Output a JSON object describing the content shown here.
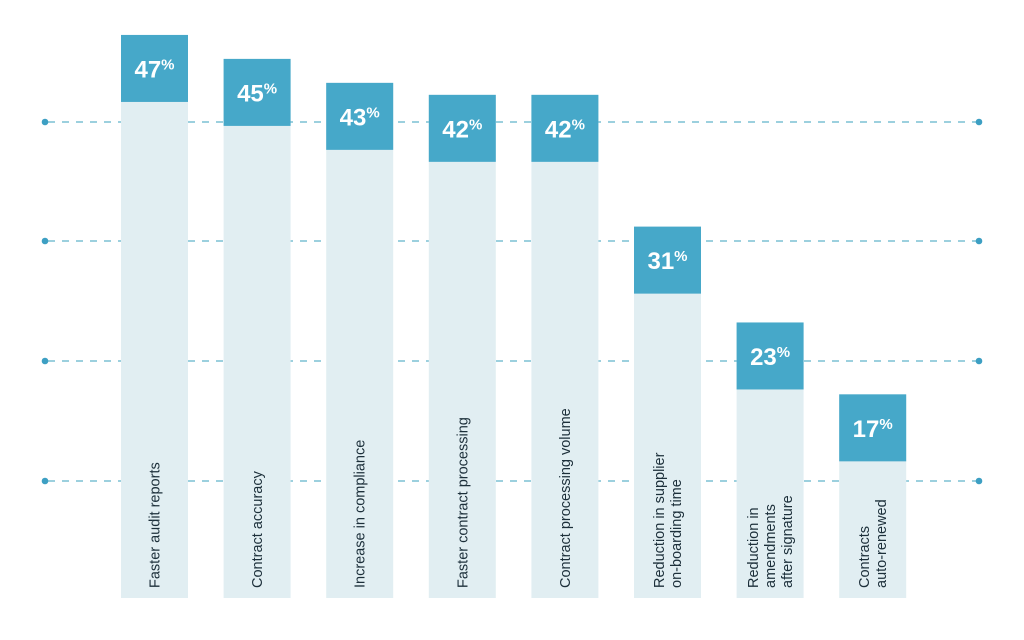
{
  "chart_data": {
    "type": "bar",
    "title": "",
    "xlabel": "",
    "ylabel": "",
    "ylim": [
      0,
      50
    ],
    "grid": true,
    "legend": "none",
    "categories": [
      "Faster audit reports",
      "Contract accuracy",
      "Increase in compliance",
      "Faster contract processing",
      "Contract processing volume",
      "Reduction in supplier on-boarding time",
      "Reduction in amendments after signature",
      "Contracts auto-renewed"
    ],
    "category_lines": [
      [
        "Faster audit reports"
      ],
      [
        "Contract accuracy"
      ],
      [
        "Increase in compliance"
      ],
      [
        "Faster contract processing"
      ],
      [
        "Contract processing volume"
      ],
      [
        "Reduction in supplier",
        "on-boarding time"
      ],
      [
        "Reduction in",
        "amendments",
        "after signature"
      ],
      [
        "Contracts",
        "auto-renewed"
      ]
    ],
    "values": [
      47,
      45,
      43,
      42,
      42,
      31,
      23,
      17
    ],
    "value_labels": [
      "47",
      "45",
      "43",
      "42",
      "42",
      "31",
      "23",
      "17"
    ],
    "value_suffix": "%",
    "colors": {
      "bar_body": "#e1eef2",
      "value_box": "#46a8c9",
      "value_text": "#ffffff",
      "category_text": "#1c2f3a",
      "grid": "#7cc0d4",
      "grid_dot": "#3d9fc3"
    }
  }
}
